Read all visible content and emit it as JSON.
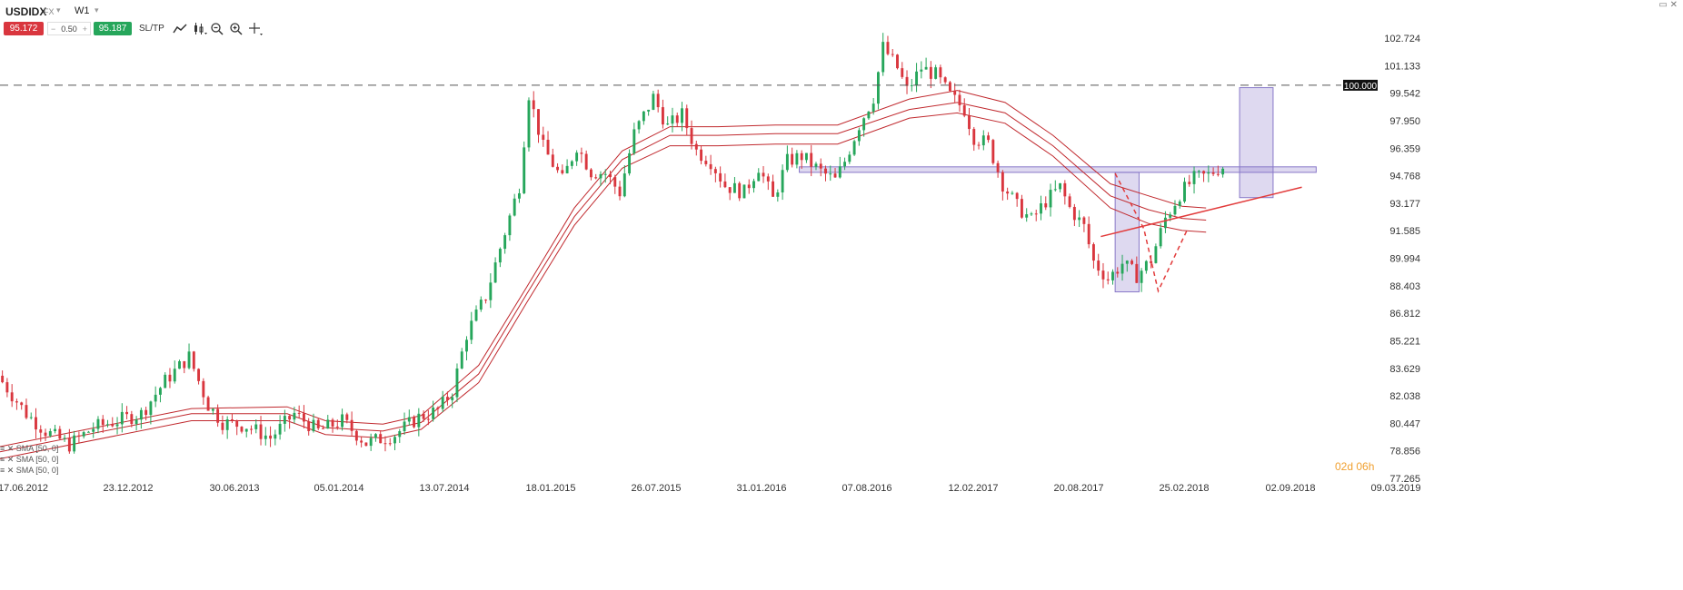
{
  "toolbar": {
    "symbol": "USDIDX",
    "market_tag": "FX",
    "timeframe": "W1",
    "bid": "95.172",
    "spread": "0.50",
    "minus": "−",
    "plus": "+",
    "ask": "95.187",
    "sltp_label": "SL/TP",
    "tools": [
      "line-tool-icon",
      "candle-type-icon",
      "zoom-out-icon",
      "zoom-in-icon",
      "crosshair-icon"
    ]
  },
  "window_controls": "▭ ✕",
  "legend": [
    "SMA [50, 0]",
    "SMA [50, 0]",
    "SMA [50, 0]"
  ],
  "countdown": "02d 06h",
  "colors": {
    "bull": "#26a65b",
    "bear": "#d9363e",
    "sma": "#c0282d",
    "zone": "#8878c8",
    "trend": "#e23b3b"
  },
  "chart_data": {
    "type": "candlestick",
    "symbol": "USDIDX",
    "timeframe": "W1",
    "x_ticks": [
      "17.06.2012",
      "23.12.2012",
      "30.06.2013",
      "05.01.2014",
      "13.07.2014",
      "18.01.2015",
      "26.07.2015",
      "31.01.2016",
      "07.08.2016",
      "12.02.2017",
      "20.08.2017",
      "25.02.2018",
      "02.09.2018",
      "09.03.2019"
    ],
    "y_ticks": [
      102.724,
      101.133,
      99.542,
      97.95,
      96.359,
      94.768,
      93.177,
      91.585,
      89.994,
      88.403,
      86.812,
      85.221,
      83.629,
      82.038,
      80.447,
      78.856,
      77.265
    ],
    "ylim": [
      77.265,
      102.724
    ],
    "horizontal_line": {
      "label": "100.000",
      "value": 100.0
    },
    "last_price": 95.172,
    "candle_path": [
      [
        0,
        83.2
      ],
      [
        6,
        81.0
      ],
      [
        10,
        80.0
      ],
      [
        15,
        79.2
      ],
      [
        20,
        80.2
      ],
      [
        25,
        80.6
      ],
      [
        30,
        81.0
      ],
      [
        35,
        82.9
      ],
      [
        40,
        84.3
      ],
      [
        44,
        81.5
      ],
      [
        47,
        80.5
      ],
      [
        52,
        80.3
      ],
      [
        57,
        79.6
      ],
      [
        62,
        81.0
      ],
      [
        67,
        80.0
      ],
      [
        72,
        80.6
      ],
      [
        77,
        79.3
      ],
      [
        83,
        79.8
      ],
      [
        88,
        80.8
      ],
      [
        92,
        81.2
      ],
      [
        95,
        82.3
      ],
      [
        98,
        85.6
      ],
      [
        102,
        87.8
      ],
      [
        106,
        91.5
      ],
      [
        109,
        94.2
      ],
      [
        111,
        99.5
      ],
      [
        114,
        96.4
      ],
      [
        118,
        94.5
      ],
      [
        121,
        96.5
      ],
      [
        124,
        95.0
      ],
      [
        127,
        94.9
      ],
      [
        130,
        93.8
      ],
      [
        133,
        97.2
      ],
      [
        137,
        99.3
      ],
      [
        140,
        97.6
      ],
      [
        143,
        98.3
      ],
      [
        146,
        96.2
      ],
      [
        149,
        95.6
      ],
      [
        152,
        94.2
      ],
      [
        156,
        93.8
      ],
      [
        159,
        95.3
      ],
      [
        162,
        93.4
      ],
      [
        165,
        95.6
      ],
      [
        168,
        95.9
      ],
      [
        172,
        95.0
      ],
      [
        175,
        94.5
      ],
      [
        177,
        95.6
      ],
      [
        180,
        97.7
      ],
      [
        183,
        99.3
      ],
      [
        185,
        102.2
      ],
      [
        188,
        101.0
      ],
      [
        190,
        99.7
      ],
      [
        193,
        101.0
      ],
      [
        196,
        100.6
      ],
      [
        199,
        99.4
      ],
      [
        202,
        98.6
      ],
      [
        204,
        97.0
      ],
      [
        207,
        96.6
      ],
      [
        210,
        94.3
      ],
      [
        213,
        93.0
      ],
      [
        216,
        92.2
      ],
      [
        219,
        93.3
      ],
      [
        222,
        94.1
      ],
      [
        224,
        92.9
      ],
      [
        227,
        91.8
      ],
      [
        229,
        89.8
      ],
      [
        232,
        88.8
      ],
      [
        235,
        89.7
      ],
      [
        238,
        89.0
      ],
      [
        241,
        89.9
      ],
      [
        244,
        92.3
      ],
      [
        247,
        93.7
      ],
      [
        250,
        94.6
      ],
      [
        253,
        94.8
      ],
      [
        255,
        95.2
      ]
    ],
    "series": [
      {
        "name": "SMA [50, 0]",
        "type": "line",
        "values": [
          [
            0,
            79.1
          ],
          [
            40,
            81.3
          ],
          [
            60,
            81.4
          ],
          [
            68,
            80.6
          ],
          [
            80,
            80.4
          ],
          [
            88,
            80.9
          ],
          [
            100,
            83.8
          ],
          [
            110,
            88.3
          ],
          [
            120,
            92.9
          ],
          [
            130,
            96.2
          ],
          [
            140,
            97.6
          ],
          [
            150,
            97.6
          ],
          [
            162,
            97.7
          ],
          [
            175,
            97.7
          ],
          [
            190,
            99.2
          ],
          [
            200,
            99.7
          ],
          [
            210,
            99.0
          ],
          [
            220,
            97.1
          ],
          [
            232,
            94.3
          ],
          [
            240,
            93.6
          ],
          [
            247,
            93.0
          ],
          [
            252,
            92.9
          ]
        ]
      },
      {
        "name": "SMA [50, 0]",
        "type": "line",
        "values": [
          [
            0,
            78.8
          ],
          [
            40,
            81.0
          ],
          [
            60,
            81.0
          ],
          [
            68,
            80.2
          ],
          [
            80,
            80.0
          ],
          [
            88,
            80.5
          ],
          [
            100,
            83.3
          ],
          [
            110,
            87.9
          ],
          [
            120,
            92.4
          ],
          [
            130,
            95.7
          ],
          [
            140,
            97.1
          ],
          [
            150,
            97.1
          ],
          [
            162,
            97.2
          ],
          [
            175,
            97.2
          ],
          [
            190,
            98.6
          ],
          [
            200,
            99.0
          ],
          [
            210,
            98.4
          ],
          [
            220,
            96.5
          ],
          [
            232,
            93.6
          ],
          [
            240,
            92.8
          ],
          [
            247,
            92.3
          ],
          [
            252,
            92.2
          ]
        ]
      },
      {
        "name": "SMA [50, 0]",
        "type": "line",
        "values": [
          [
            0,
            78.4
          ],
          [
            40,
            80.6
          ],
          [
            60,
            80.6
          ],
          [
            68,
            79.8
          ],
          [
            80,
            79.6
          ],
          [
            88,
            80.1
          ],
          [
            100,
            82.8
          ],
          [
            110,
            87.4
          ],
          [
            120,
            91.9
          ],
          [
            130,
            95.2
          ],
          [
            140,
            96.5
          ],
          [
            150,
            96.5
          ],
          [
            162,
            96.6
          ],
          [
            175,
            96.6
          ],
          [
            190,
            98.1
          ],
          [
            200,
            98.4
          ],
          [
            210,
            97.8
          ],
          [
            220,
            95.9
          ],
          [
            232,
            92.9
          ],
          [
            240,
            92.0
          ],
          [
            247,
            91.6
          ],
          [
            252,
            91.5
          ]
        ]
      }
    ],
    "annotations": {
      "zones": [
        {
          "x": [
            167,
            275
          ],
          "y": [
            94.96,
            95.28
          ]
        },
        {
          "x": [
            233,
            238
          ],
          "y": [
            88.05,
            94.96
          ]
        },
        {
          "x": [
            259,
            266
          ],
          "y": [
            93.5,
            99.86
          ]
        }
      ],
      "trendline": {
        "x": [
          230,
          272
        ],
        "y": [
          91.25,
          94.1
        ]
      },
      "dashed_path": [
        [
          233,
          94.9
        ],
        [
          236,
          93.3
        ],
        [
          239,
          91.7
        ],
        [
          242,
          88.1
        ],
        [
          248,
          91.6
        ]
      ]
    }
  }
}
